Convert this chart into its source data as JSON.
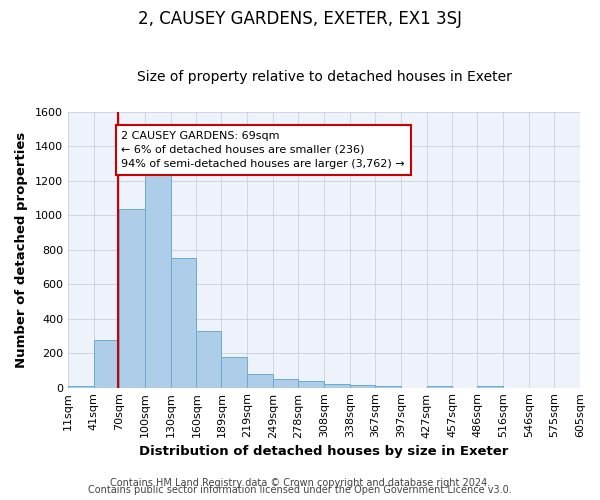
{
  "title": "2, CAUSEY GARDENS, EXETER, EX1 3SJ",
  "subtitle": "Size of property relative to detached houses in Exeter",
  "xlabel": "Distribution of detached houses by size in Exeter",
  "ylabel": "Number of detached properties",
  "footer_line1": "Contains HM Land Registry data © Crown copyright and database right 2024.",
  "footer_line2": "Contains public sector information licensed under the Open Government Licence v3.0.",
  "bin_labels": [
    "11sqm",
    "41sqm",
    "70sqm",
    "100sqm",
    "130sqm",
    "160sqm",
    "189sqm",
    "219sqm",
    "249sqm",
    "278sqm",
    "308sqm",
    "338sqm",
    "367sqm",
    "397sqm",
    "427sqm",
    "457sqm",
    "486sqm",
    "516sqm",
    "546sqm",
    "575sqm",
    "605sqm"
  ],
  "bin_edges": [
    11,
    41,
    70,
    100,
    130,
    160,
    189,
    219,
    249,
    278,
    308,
    338,
    367,
    397,
    427,
    457,
    486,
    516,
    546,
    575,
    605
  ],
  "bar_values": [
    10,
    275,
    1035,
    1245,
    755,
    330,
    178,
    80,
    48,
    38,
    22,
    13,
    10,
    0,
    12,
    0,
    10,
    0,
    0,
    0
  ],
  "bar_color": "#aecde8",
  "bar_edge_color": "#6aabd2",
  "property_line_x": 69,
  "property_line_color": "#cc0000",
  "annotation_line1": "2 CAUSEY GARDENS: 69sqm",
  "annotation_line2": "← 6% of detached houses are smaller (236)",
  "annotation_line3": "94% of semi-detached houses are larger (3,762) →",
  "annotation_box_color": "#ffffff",
  "annotation_border_color": "#cc0000",
  "ylim": [
    0,
    1600
  ],
  "yticks": [
    0,
    200,
    400,
    600,
    800,
    1000,
    1200,
    1400,
    1600
  ],
  "background_color": "#ffffff",
  "plot_bg_color": "#eef2fb",
  "grid_color": "#c8d0e0",
  "title_fontsize": 12,
  "subtitle_fontsize": 10,
  "axis_label_fontsize": 9.5,
  "tick_fontsize": 8,
  "annotation_fontsize": 8,
  "footer_fontsize": 7
}
